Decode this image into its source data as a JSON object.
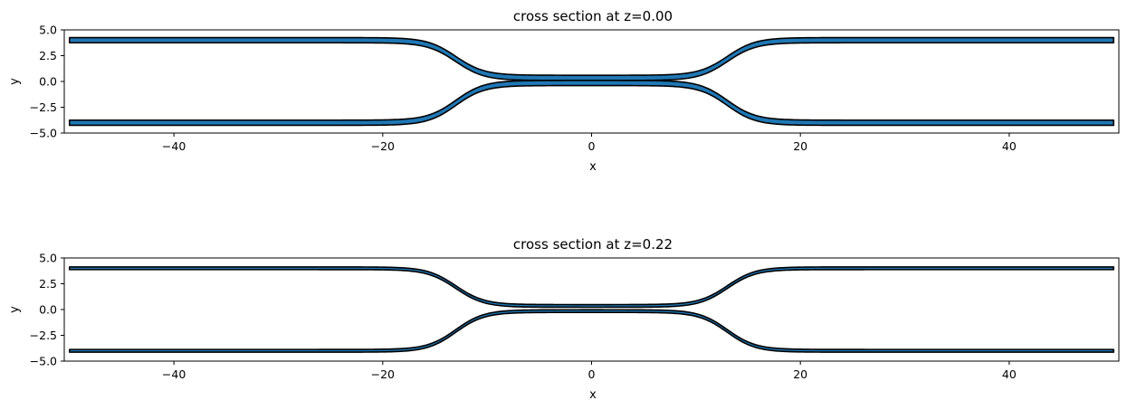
{
  "chart_data": [
    {
      "type": "area",
      "title": "cross section at z=0.00",
      "xlabel": "x",
      "ylabel": "y",
      "xlim": [
        -50.5,
        50.5
      ],
      "ylim": [
        -5,
        5
      ],
      "xticks": [
        -40,
        -20,
        0,
        20,
        40
      ],
      "yticks": [
        5.0,
        2.5,
        0.0,
        -2.5,
        -5.0
      ],
      "xtick_labels": [
        "−40",
        "−20",
        "0",
        "20",
        "40"
      ],
      "ytick_labels": [
        "5.0",
        "2.5",
        "0.0",
        "−2.5",
        "−5.0"
      ],
      "grid": false,
      "fill_color": "#1f77b4",
      "edge_color": "#000000",
      "series": [
        {
          "center_y_outer": 4.0,
          "center_y_inner": 0.35,
          "half_width": 0.25,
          "x_range": [
            -50,
            50
          ],
          "transition_center": 13.0,
          "transition_halfwidth": 3.0
        },
        {
          "center_y_outer": -4.0,
          "center_y_inner": -0.15,
          "half_width": 0.25,
          "x_range": [
            -50,
            50
          ],
          "transition_center": 13.0,
          "transition_halfwidth": 3.0
        }
      ]
    },
    {
      "type": "area",
      "title": "cross section at z=0.22",
      "xlabel": "x",
      "ylabel": "y",
      "xlim": [
        -50.5,
        50.5
      ],
      "ylim": [
        -5,
        5
      ],
      "xticks": [
        -40,
        -20,
        0,
        20,
        40
      ],
      "yticks": [
        5.0,
        2.5,
        0.0,
        -2.5,
        -5.0
      ],
      "xtick_labels": [
        "−40",
        "−20",
        "0",
        "20",
        "40"
      ],
      "ytick_labels": [
        "5.0",
        "2.5",
        "0.0",
        "−2.5",
        "−5.0"
      ],
      "grid": false,
      "fill_color": "#1f77b4",
      "edge_color": "#000000",
      "series": [
        {
          "center_y_outer": 4.0,
          "center_y_inner": 0.35,
          "half_width": 0.13,
          "x_range": [
            -50,
            50
          ],
          "transition_center": 13.0,
          "transition_halfwidth": 3.0
        },
        {
          "center_y_outer": -4.0,
          "center_y_inner": -0.15,
          "half_width": 0.13,
          "x_range": [
            -50,
            50
          ],
          "transition_center": 13.0,
          "transition_halfwidth": 3.0
        }
      ]
    }
  ]
}
